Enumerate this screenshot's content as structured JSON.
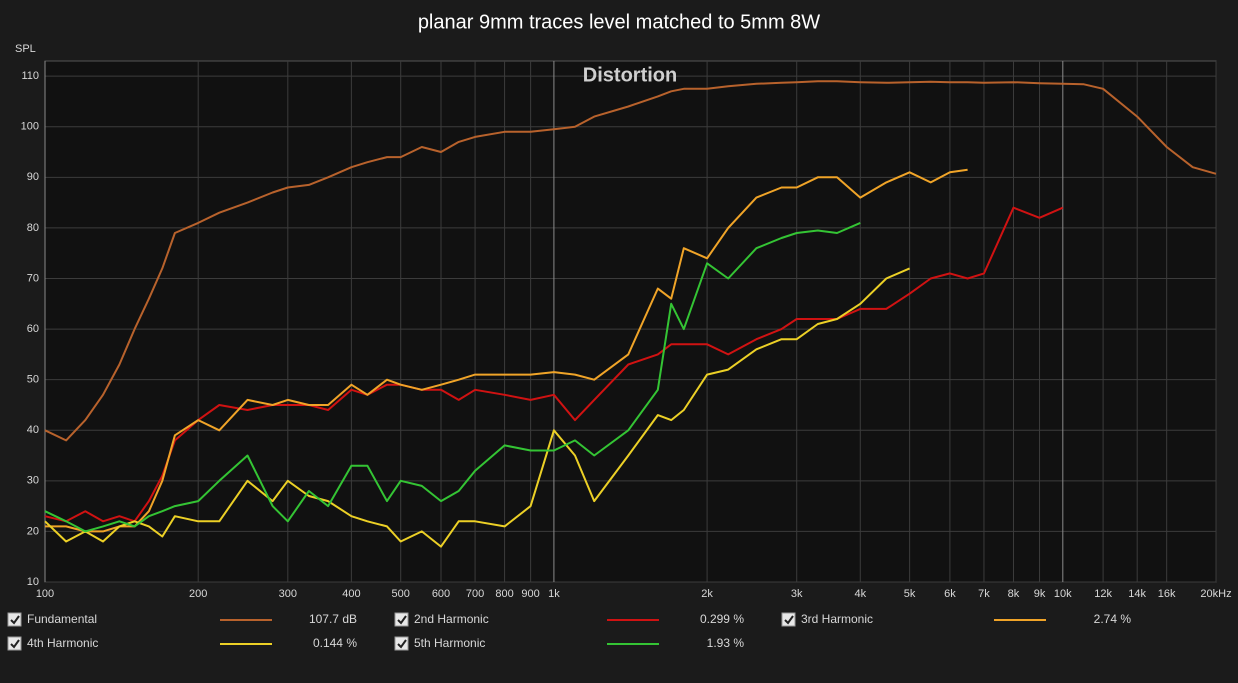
{
  "chart_data": {
    "type": "line",
    "title": "planar 9mm traces level matched to 5mm 8W",
    "annotation": "Distortion",
    "y_label": "SPL",
    "x_scale": "log",
    "grid": true,
    "x": [
      100,
      110,
      120,
      130,
      140,
      150,
      160,
      170,
      180,
      200,
      220,
      250,
      280,
      300,
      330,
      360,
      400,
      430,
      470,
      500,
      550,
      600,
      650,
      700,
      800,
      900,
      1000,
      1100,
      1200,
      1400,
      1600,
      1700,
      1800,
      2000,
      2200,
      2500,
      2800,
      3000,
      3300,
      3600,
      4000,
      4500,
      5000,
      5500,
      6000,
      6500,
      7000,
      8000,
      9000,
      10000,
      11000,
      12000,
      14000,
      16000,
      18000,
      20000
    ],
    "xlim": [
      100,
      20000
    ],
    "xticks": [
      100,
      200,
      300,
      400,
      500,
      600,
      700,
      800,
      900,
      {
        "value": 1000,
        "label": "1k"
      },
      {
        "value": 2000,
        "label": "2k"
      },
      {
        "value": 3000,
        "label": "3k"
      },
      {
        "value": 4000,
        "label": "4k"
      },
      {
        "value": 5000,
        "label": "5k"
      },
      {
        "value": 6000,
        "label": "6k"
      },
      {
        "value": 7000,
        "label": "7k"
      },
      {
        "value": 8000,
        "label": "8k"
      },
      {
        "value": 9000,
        "label": "9k"
      },
      {
        "value": 10000,
        "label": "10k"
      },
      {
        "value": 12000,
        "label": "12k"
      },
      {
        "value": 14000,
        "label": "14k"
      },
      {
        "value": 16000,
        "label": "16k"
      },
      {
        "value": 20000,
        "label": "20kHz"
      }
    ],
    "ylim": [
      10,
      113
    ],
    "yticks": [
      10,
      20,
      30,
      40,
      50,
      60,
      70,
      80,
      90,
      100,
      110
    ],
    "series": [
      {
        "name": "Fundamental",
        "color": "#b8622c",
        "legend_value": "107.7 dB",
        "values": [
          40,
          38,
          42,
          47,
          53,
          60,
          66,
          72,
          79,
          81,
          83,
          85,
          87,
          88,
          88.5,
          90,
          92,
          93,
          94,
          94,
          96,
          95,
          97,
          98,
          99,
          99,
          99.5,
          100,
          102,
          104,
          106,
          107,
          107.5,
          107.5,
          108,
          108.5,
          108.7,
          108.8,
          109,
          109,
          108.8,
          108.7,
          108.8,
          108.9,
          108.8,
          108.8,
          108.7,
          108.8,
          108.6,
          108.5,
          108.4,
          107.5,
          102,
          96,
          92,
          90.7
        ]
      },
      {
        "name": "2nd Harmonic",
        "color": "#d01212",
        "legend_value": "0.299 %",
        "values": [
          23,
          22,
          24,
          22,
          23,
          22,
          26,
          31,
          38,
          42,
          45,
          44,
          45,
          45,
          45,
          44,
          48,
          47,
          49,
          49,
          48,
          48,
          46,
          48,
          47,
          46,
          47,
          42,
          46,
          53,
          55,
          57,
          57,
          57,
          55,
          58,
          60,
          62,
          62,
          62,
          64,
          64,
          67,
          70,
          71,
          70,
          71,
          84,
          82,
          84,
          null,
          null,
          null,
          null,
          null,
          null
        ]
      },
      {
        "name": "3rd Harmonic",
        "color": "#f0a428",
        "legend_value": "2.74 %",
        "values": [
          21,
          21,
          20,
          20,
          21,
          21,
          24,
          30,
          39,
          42,
          40,
          46,
          45,
          46,
          45,
          45,
          49,
          47,
          50,
          49,
          48,
          49,
          50,
          51,
          51,
          51,
          51.5,
          51,
          50,
          55,
          68,
          66,
          76,
          74,
          80,
          86,
          88,
          88,
          90,
          90,
          86,
          89,
          91,
          89,
          91,
          91.5,
          null,
          null,
          null,
          null,
          null,
          null,
          null,
          null,
          null,
          null
        ]
      },
      {
        "name": "4th Harmonic",
        "color": "#ecd026",
        "legend_value": "0.144 %",
        "values": [
          22,
          18,
          20,
          18,
          21,
          22,
          21,
          19,
          23,
          22,
          22,
          30,
          26,
          30,
          27,
          26,
          23,
          22,
          21,
          18,
          20,
          17,
          22,
          22,
          21,
          25,
          40,
          35,
          26,
          35,
          43,
          42,
          44,
          51,
          52,
          56,
          58,
          58,
          61,
          62,
          65,
          70,
          72,
          null,
          null,
          null,
          null,
          null,
          null,
          null,
          null,
          null,
          null,
          null,
          null,
          null
        ]
      },
      {
        "name": "5th Harmonic",
        "color": "#34c434",
        "legend_value": "1.93 %",
        "values": [
          24,
          22,
          20,
          21,
          22,
          21,
          23,
          24,
          25,
          26,
          30,
          35,
          25,
          22,
          28,
          25,
          33,
          33,
          26,
          30,
          29,
          26,
          28,
          32,
          37,
          36,
          36,
          38,
          35,
          40,
          48,
          65,
          60,
          73,
          70,
          76,
          78,
          79,
          79.5,
          79,
          81,
          null,
          null,
          null,
          null,
          null,
          null,
          null,
          null,
          null,
          null,
          null,
          null,
          null,
          null,
          null
        ]
      }
    ]
  }
}
